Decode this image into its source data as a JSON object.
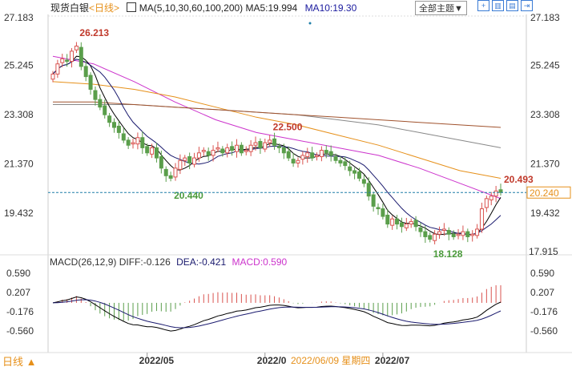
{
  "header": {
    "title": "现货白银",
    "period": "<日线>",
    "ma_label": "MA(5,10,30,60,100,200)",
    "ma5": "MA5:19.994",
    "ma10": "MA10:19.30",
    "theme_button": "全部主题▼"
  },
  "colors": {
    "up": "#d9534f",
    "down": "#5a9e4b",
    "ma5": "#000000",
    "ma10": "#1a1a6e",
    "ma30": "#cc33cc",
    "ma60": "#e6901a",
    "ma100": "#888888",
    "ma200": "#a0522d",
    "crosshair": "#1f7fa8",
    "macd_label": "#cc33cc"
  },
  "chart_data": {
    "type": "candlestick",
    "title": "现货白银 日线",
    "y_ticks": [
      "27.183",
      "25.245",
      "23.308",
      "21.370",
      "19.432",
      "17.915"
    ],
    "ylim": [
      17.915,
      27.183
    ],
    "closes": [
      24.9,
      25.3,
      25.5,
      25.4,
      25.8,
      26.0,
      25.2,
      24.8,
      24.3,
      23.9,
      23.6,
      23.3,
      23.0,
      22.8,
      22.6,
      22.3,
      22.1,
      22.2,
      22.4,
      22.0,
      21.8,
      22.0,
      21.6,
      21.2,
      20.9,
      20.8,
      21.2,
      21.5,
      21.6,
      21.4,
      21.6,
      21.8,
      21.9,
      21.7,
      21.9,
      22.0,
      21.8,
      22.0,
      21.9,
      22.1,
      21.8,
      21.9,
      22.1,
      22.2,
      22.0,
      22.2,
      22.3,
      22.1,
      22.0,
      21.8,
      21.6,
      21.4,
      21.5,
      21.7,
      21.8,
      21.6,
      21.7,
      21.9,
      21.8,
      21.7,
      21.5,
      21.4,
      21.3,
      21.1,
      21.0,
      20.8,
      20.6,
      20.1,
      19.7,
      19.6,
      19.3,
      19.0,
      19.2,
      19.0,
      18.9,
      19.0,
      19.1,
      18.9,
      18.7,
      18.5,
      18.4,
      18.6,
      18.7,
      18.8,
      18.6,
      18.5,
      18.6,
      18.7,
      18.5,
      18.6,
      18.8,
      19.6,
      20.0,
      20.1,
      20.3,
      20.24
    ],
    "long_mas": {
      "ma30": [
        25.6,
        25.3,
        24.6,
        23.8,
        23.1,
        22.6,
        22.3,
        22.0,
        21.7,
        21.2,
        20.6,
        20.0
      ],
      "ma60": [
        24.6,
        24.5,
        24.3,
        24.0,
        23.6,
        23.2,
        22.9,
        22.5,
        22.1,
        21.6,
        21.1,
        20.8
      ],
      "ma100": [
        23.7,
        23.7,
        23.7,
        23.6,
        23.5,
        23.4,
        23.3,
        23.1,
        22.9,
        22.6,
        22.3,
        22.0
      ],
      "ma200": [
        23.8,
        23.8,
        23.7,
        23.6,
        23.5,
        23.4,
        23.3,
        23.2,
        23.1,
        23.0,
        22.9,
        22.8
      ]
    },
    "annotations": [
      {
        "idx": 5,
        "text": "26.213",
        "kind": "high"
      },
      {
        "idx": 46,
        "text": "22.500",
        "kind": "high"
      },
      {
        "idx": 25,
        "text": "20.440",
        "kind": "low"
      },
      {
        "idx": 80,
        "text": "18.128",
        "kind": "low"
      },
      {
        "idx": 95,
        "text": "20.493",
        "kind": "high"
      }
    ],
    "crosshair_value": "20.240",
    "x_ticks": [
      {
        "idx": 20,
        "text": "2022/05"
      },
      {
        "idx": 45,
        "text": "2022/0"
      },
      {
        "idx": 70,
        "text": "2022/07"
      }
    ],
    "cursor_date": "2022/06/09 星期四",
    "macd": {
      "label": "MACD(26,12,9)",
      "diff": "DIFF:-0.126",
      "dea": "DEA:-0.421",
      "macd": "MACD:0.590",
      "y_ticks": [
        "0.590",
        "0.207",
        "-0.176",
        "-0.560"
      ],
      "ylim": [
        -0.75,
        0.59
      ]
    }
  },
  "footer": {
    "period_toggle": "日线 ▲"
  }
}
